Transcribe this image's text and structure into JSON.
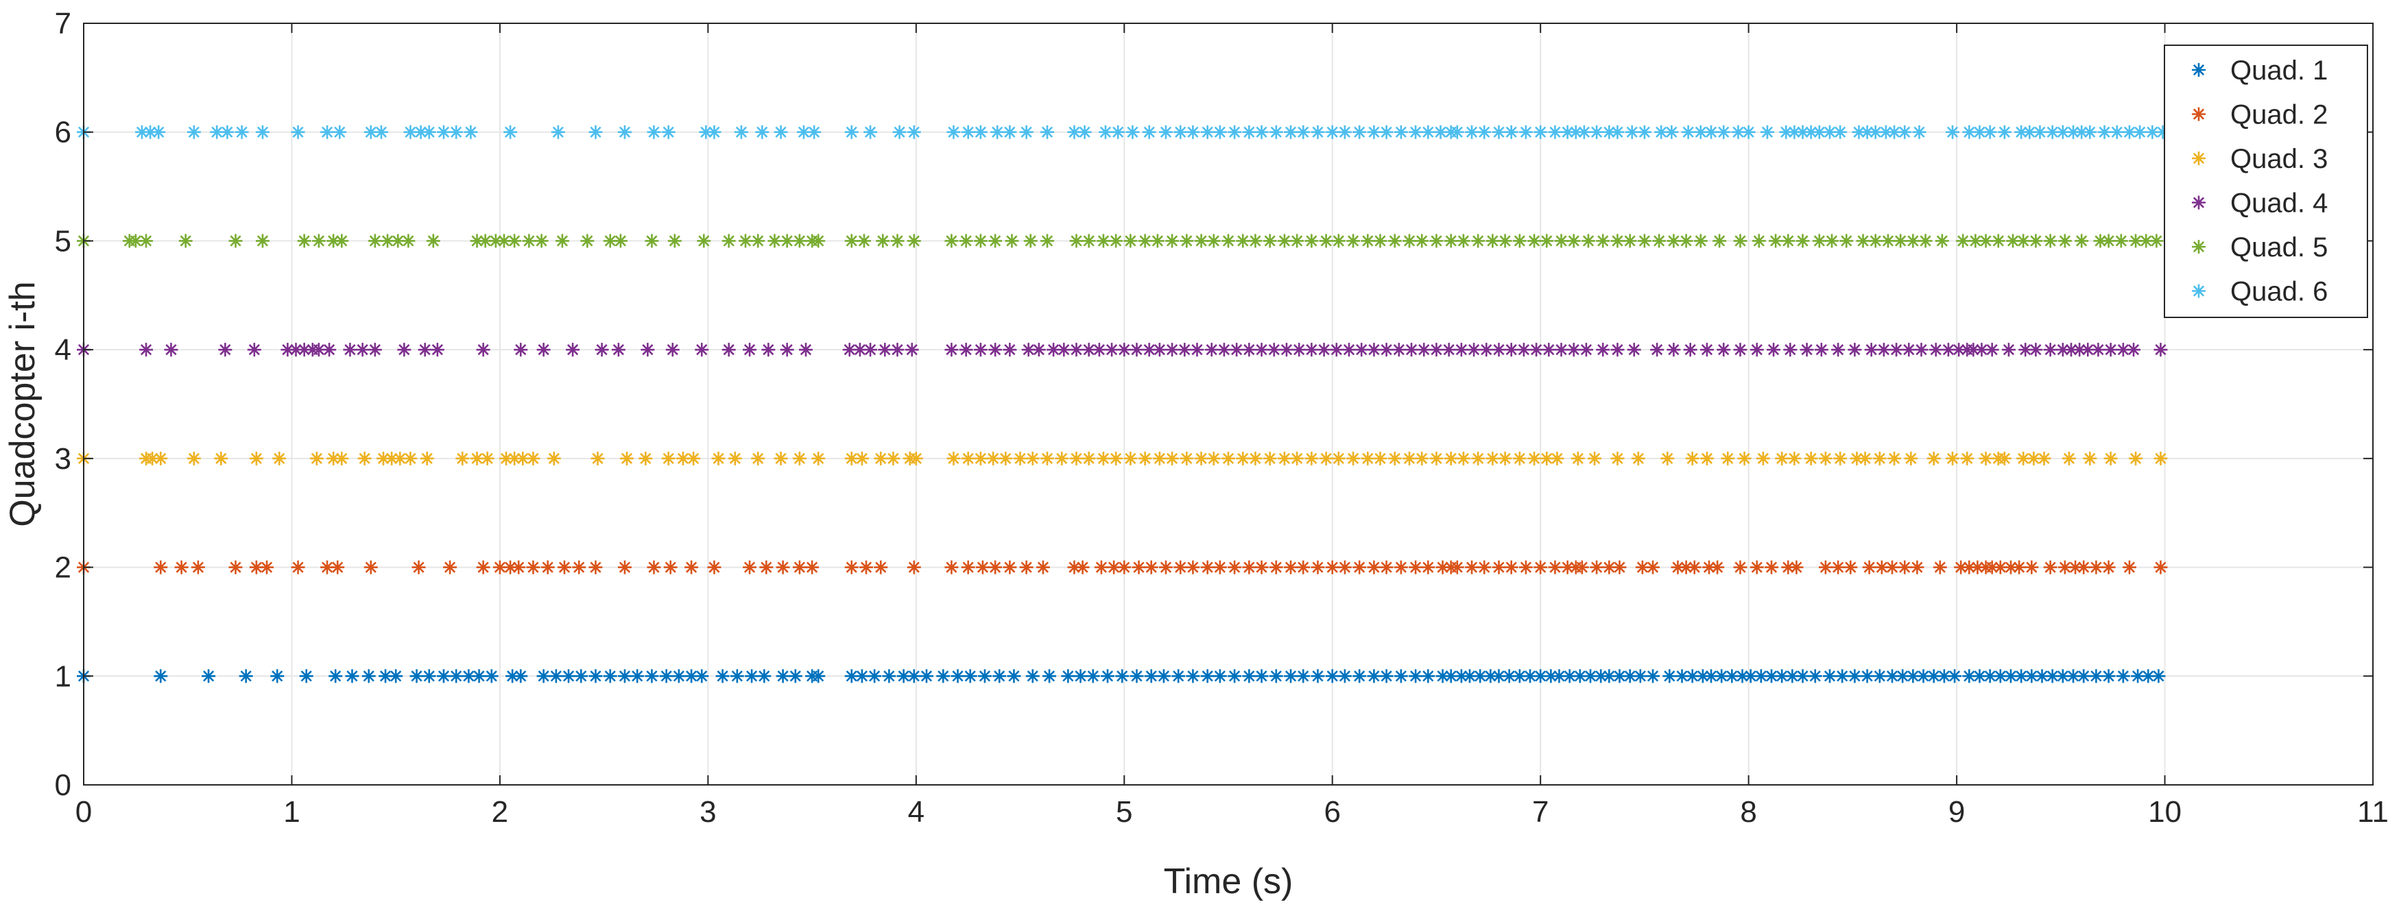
{
  "chart_data": {
    "type": "scatter",
    "title": "",
    "xlabel": "Time (s)",
    "ylabel": "Quadcopter i-th",
    "xlim": [
      0,
      11
    ],
    "ylim": [
      0,
      7
    ],
    "xticks": [
      "0",
      "1",
      "2",
      "3",
      "4",
      "5",
      "6",
      "7",
      "8",
      "9",
      "10",
      "11"
    ],
    "yticks": [
      "0",
      "1",
      "2",
      "3",
      "4",
      "5",
      "6",
      "7"
    ],
    "grid": true,
    "legend_position": "top-right",
    "marker": "asterisk",
    "series": [
      {
        "name": "Quad. 1",
        "color": "#0072BD",
        "y": 1,
        "x": [
          0,
          0.37,
          0.6,
          0.78,
          0.93,
          1.07,
          1.21,
          1.29,
          1.37,
          1.45,
          1.5,
          1.6,
          1.66,
          1.73,
          1.79,
          1.85,
          1.9,
          1.96,
          2.06,
          2.1,
          2.21,
          2.27,
          2.33,
          2.39,
          2.46,
          2.53,
          2.6,
          2.66,
          2.73,
          2.8,
          2.86,
          2.92,
          2.97,
          3.07,
          3.14,
          3.21,
          3.27,
          3.36,
          3.42,
          3.5,
          3.53,
          3.69,
          3.74,
          3.8,
          3.87,
          3.94,
          3.99,
          4.05,
          4.13,
          4.2,
          4.26,
          4.33,
          4.4,
          4.47,
          4.56,
          4.64,
          4.73,
          4.79,
          4.85,
          4.92,
          4.99,
          5.06,
          5.13,
          5.19,
          5.26,
          5.33,
          5.4,
          5.46,
          5.53,
          5.6,
          5.66,
          5.73,
          5.8,
          5.86,
          5.93,
          6.0,
          6.06,
          6.13,
          6.2,
          6.26,
          6.33,
          6.4,
          6.46,
          6.53,
          6.57,
          6.62,
          6.66,
          6.71,
          6.76,
          6.8,
          6.85,
          6.9,
          6.95,
          7.0,
          7.05,
          7.09,
          7.14,
          7.19,
          7.24,
          7.29,
          7.33,
          7.38,
          7.43,
          7.48,
          7.54,
          7.62,
          7.68,
          7.73,
          7.78,
          7.82,
          7.87,
          7.92,
          7.97,
          8.01,
          8.06,
          8.11,
          8.16,
          8.21,
          8.26,
          8.32,
          8.39,
          8.45,
          8.51,
          8.57,
          8.63,
          8.69,
          8.74,
          8.79,
          8.84,
          8.89,
          8.94,
          8.99,
          9.06,
          9.11,
          9.16,
          9.21,
          9.26,
          9.31,
          9.36,
          9.41,
          9.46,
          9.51,
          9.56,
          9.61,
          9.67,
          9.73,
          9.8,
          9.87,
          9.92,
          9.97
        ]
      },
      {
        "name": "Quad. 2",
        "color": "#D95319",
        "y": 2,
        "x": [
          0,
          0.37,
          0.47,
          0.55,
          0.73,
          0.83,
          0.88,
          1.03,
          1.17,
          1.22,
          1.38,
          1.61,
          1.76,
          1.92,
          2.0,
          2.05,
          2.09,
          2.16,
          2.23,
          2.31,
          2.38,
          2.46,
          2.6,
          2.74,
          2.82,
          2.92,
          3.03,
          3.2,
          3.28,
          3.36,
          3.44,
          3.5,
          3.69,
          3.76,
          3.83,
          3.99,
          4.17,
          4.25,
          4.32,
          4.38,
          4.45,
          4.53,
          4.61,
          4.76,
          4.8,
          4.89,
          4.95,
          5.0,
          5.07,
          5.13,
          5.2,
          5.27,
          5.33,
          5.4,
          5.46,
          5.53,
          5.6,
          5.66,
          5.73,
          5.8,
          5.86,
          5.93,
          6.0,
          6.06,
          6.13,
          6.2,
          6.26,
          6.33,
          6.4,
          6.46,
          6.53,
          6.57,
          6.6,
          6.67,
          6.73,
          6.8,
          6.86,
          6.93,
          7.0,
          7.07,
          7.13,
          7.17,
          7.2,
          7.27,
          7.33,
          7.38,
          7.49,
          7.54,
          7.66,
          7.7,
          7.74,
          7.81,
          7.85,
          7.96,
          8.04,
          8.11,
          8.19,
          8.23,
          8.37,
          8.43,
          8.49,
          8.58,
          8.64,
          8.69,
          8.75,
          8.81,
          8.92,
          9.02,
          9.06,
          9.1,
          9.14,
          9.17,
          9.21,
          9.26,
          9.3,
          9.36,
          9.45,
          9.52,
          9.57,
          9.61,
          9.67,
          9.73,
          9.83,
          9.98
        ]
      },
      {
        "name": "Quad. 3",
        "color": "#EDB120",
        "y": 3,
        "x": [
          0,
          0.3,
          0.33,
          0.37,
          0.53,
          0.66,
          0.83,
          0.94,
          1.12,
          1.2,
          1.24,
          1.35,
          1.44,
          1.48,
          1.52,
          1.57,
          1.65,
          1.82,
          1.89,
          1.94,
          2.03,
          2.07,
          2.11,
          2.16,
          2.26,
          2.47,
          2.61,
          2.7,
          2.81,
          2.88,
          2.93,
          3.05,
          3.13,
          3.24,
          3.35,
          3.44,
          3.53,
          3.69,
          3.74,
          3.83,
          3.89,
          3.97,
          4.0,
          4.18,
          4.25,
          4.31,
          4.37,
          4.43,
          4.5,
          4.56,
          4.63,
          4.7,
          4.77,
          4.83,
          4.9,
          4.96,
          5.03,
          5.1,
          5.17,
          5.23,
          5.3,
          5.37,
          5.43,
          5.5,
          5.57,
          5.63,
          5.7,
          5.77,
          5.83,
          5.9,
          5.97,
          6.03,
          6.1,
          6.17,
          6.23,
          6.3,
          6.37,
          6.43,
          6.5,
          6.57,
          6.63,
          6.7,
          6.77,
          6.83,
          6.9,
          6.97,
          7.03,
          7.08,
          7.18,
          7.26,
          7.37,
          7.47,
          7.61,
          7.73,
          7.8,
          7.9,
          7.98,
          8.07,
          8.16,
          8.22,
          8.3,
          8.37,
          8.44,
          8.52,
          8.56,
          8.63,
          8.7,
          8.78,
          8.89,
          8.98,
          9.05,
          9.14,
          9.2,
          9.23,
          9.32,
          9.37,
          9.42,
          9.54,
          9.64,
          9.74,
          9.86,
          9.98
        ]
      },
      {
        "name": "Quad. 4",
        "color": "#7E2F8E",
        "y": 4,
        "x": [
          0,
          0.3,
          0.42,
          0.68,
          0.82,
          0.98,
          1.02,
          1.06,
          1.1,
          1.13,
          1.18,
          1.28,
          1.34,
          1.4,
          1.54,
          1.64,
          1.7,
          1.92,
          2.1,
          2.21,
          2.35,
          2.49,
          2.57,
          2.71,
          2.83,
          2.97,
          3.1,
          3.2,
          3.29,
          3.38,
          3.47,
          3.68,
          3.73,
          3.78,
          3.85,
          3.91,
          3.98,
          4.17,
          4.24,
          4.31,
          4.38,
          4.45,
          4.54,
          4.59,
          4.66,
          4.71,
          4.77,
          4.83,
          4.88,
          4.94,
          5.0,
          5.06,
          5.12,
          5.17,
          5.23,
          5.29,
          5.35,
          5.42,
          5.48,
          5.54,
          5.6,
          5.66,
          5.72,
          5.78,
          5.84,
          5.9,
          5.96,
          6.02,
          6.08,
          6.14,
          6.2,
          6.26,
          6.32,
          6.38,
          6.44,
          6.5,
          6.56,
          6.62,
          6.68,
          6.74,
          6.8,
          6.86,
          6.92,
          6.98,
          7.04,
          7.1,
          7.16,
          7.22,
          7.3,
          7.37,
          7.45,
          7.56,
          7.64,
          7.72,
          7.8,
          7.88,
          7.96,
          8.04,
          8.12,
          8.2,
          8.28,
          8.35,
          8.43,
          8.51,
          8.59,
          8.65,
          8.71,
          8.77,
          8.83,
          8.9,
          8.96,
          9.01,
          9.05,
          9.08,
          9.12,
          9.17,
          9.25,
          9.33,
          9.38,
          9.45,
          9.51,
          9.55,
          9.59,
          9.63,
          9.68,
          9.74,
          9.8,
          9.85,
          9.98
        ]
      },
      {
        "name": "Quad. 5",
        "color": "#77AC30",
        "y": 5,
        "x": [
          0,
          0.22,
          0.25,
          0.3,
          0.49,
          0.73,
          0.86,
          1.06,
          1.13,
          1.2,
          1.24,
          1.4,
          1.46,
          1.51,
          1.56,
          1.68,
          1.89,
          1.93,
          1.98,
          2.02,
          2.07,
          2.14,
          2.2,
          2.3,
          2.42,
          2.53,
          2.58,
          2.73,
          2.84,
          2.98,
          3.1,
          3.18,
          3.24,
          3.32,
          3.38,
          3.44,
          3.5,
          3.53,
          3.69,
          3.75,
          3.84,
          3.91,
          3.99,
          4.17,
          4.24,
          4.31,
          4.38,
          4.46,
          4.55,
          4.63,
          4.77,
          4.83,
          4.9,
          4.96,
          5.03,
          5.1,
          5.16,
          5.23,
          5.3,
          5.37,
          5.43,
          5.5,
          5.57,
          5.63,
          5.7,
          5.77,
          5.83,
          5.9,
          5.97,
          6.03,
          6.1,
          6.17,
          6.23,
          6.3,
          6.37,
          6.43,
          6.5,
          6.57,
          6.63,
          6.7,
          6.77,
          6.83,
          6.9,
          6.97,
          7.03,
          7.1,
          7.16,
          7.23,
          7.3,
          7.37,
          7.43,
          7.5,
          7.57,
          7.64,
          7.7,
          7.77,
          7.86,
          7.96,
          8.05,
          8.13,
          8.19,
          8.26,
          8.34,
          8.4,
          8.47,
          8.55,
          8.61,
          8.67,
          8.73,
          8.79,
          8.85,
          8.93,
          9.03,
          9.09,
          9.14,
          9.2,
          9.27,
          9.32,
          9.38,
          9.45,
          9.52,
          9.6,
          9.69,
          9.73,
          9.79,
          9.86,
          9.91,
          9.96
        ]
      },
      {
        "name": "Quad. 6",
        "color": "#4DBEEE",
        "y": 6,
        "x": [
          0,
          0.28,
          0.32,
          0.36,
          0.53,
          0.64,
          0.69,
          0.76,
          0.86,
          1.03,
          1.17,
          1.23,
          1.38,
          1.43,
          1.57,
          1.62,
          1.66,
          1.73,
          1.79,
          1.86,
          2.05,
          2.28,
          2.46,
          2.6,
          2.74,
          2.81,
          2.99,
          3.03,
          3.16,
          3.26,
          3.35,
          3.46,
          3.51,
          3.69,
          3.78,
          3.92,
          3.99,
          4.18,
          4.25,
          4.31,
          4.39,
          4.45,
          4.53,
          4.63,
          4.76,
          4.81,
          4.91,
          4.97,
          5.04,
          5.12,
          5.2,
          5.27,
          5.33,
          5.4,
          5.46,
          5.53,
          5.6,
          5.66,
          5.73,
          5.8,
          5.86,
          5.93,
          6.0,
          6.06,
          6.13,
          6.2,
          6.26,
          6.33,
          6.4,
          6.46,
          6.52,
          6.57,
          6.6,
          6.67,
          6.73,
          6.8,
          6.86,
          6.93,
          7.0,
          7.07,
          7.13,
          7.17,
          7.21,
          7.27,
          7.33,
          7.37,
          7.44,
          7.5,
          7.58,
          7.63,
          7.71,
          7.77,
          7.82,
          7.88,
          7.95,
          8.0,
          8.09,
          8.18,
          8.22,
          8.26,
          8.3,
          8.34,
          8.39,
          8.44,
          8.53,
          8.57,
          8.61,
          8.66,
          8.7,
          8.75,
          8.82,
          8.98,
          9.06,
          9.11,
          9.16,
          9.23,
          9.31,
          9.35,
          9.4,
          9.46,
          9.51,
          9.56,
          9.6,
          9.64,
          9.71,
          9.77,
          9.83,
          9.88,
          9.94,
          9.99
        ]
      }
    ]
  }
}
